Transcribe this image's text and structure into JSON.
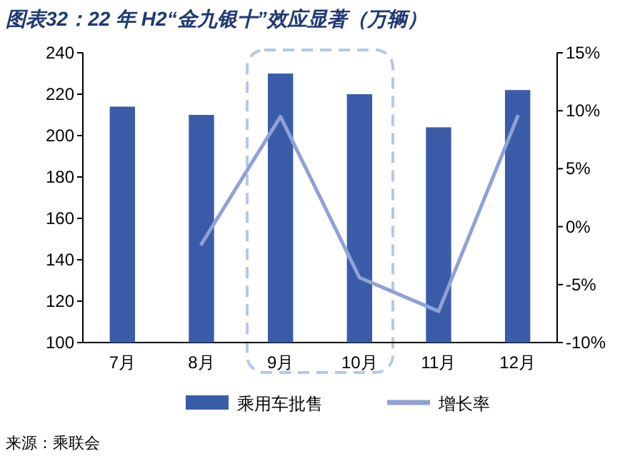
{
  "chart_data": {
    "type": "bar",
    "title": "图表32：22 年 H2“金九银十”效应显著（万辆）",
    "categories": [
      "7月",
      "8月",
      "9月",
      "10月",
      "11月",
      "12月"
    ],
    "series": [
      {
        "name": "乘用车批售",
        "color": "#3a5ca8",
        "values": [
          214,
          210,
          230,
          220,
          204,
          222
        ]
      },
      {
        "name": "增长率",
        "type": "line",
        "axis": "y2",
        "color": "#8fa2d6",
        "values": [
          null,
          -1.5,
          9.5,
          -4.4,
          -7.3,
          9.5
        ]
      }
    ],
    "ylim": [
      100,
      240
    ],
    "yticks": [
      100,
      120,
      140,
      160,
      180,
      200,
      220,
      240
    ],
    "y2lim": [
      -10,
      15
    ],
    "y2ticks": [
      {
        "value": -10,
        "label": "-10%"
      },
      {
        "value": -5,
        "label": "-5%"
      },
      {
        "value": 0,
        "label": "0%"
      },
      {
        "value": 5,
        "label": "5%"
      },
      {
        "value": 10,
        "label": "10%"
      },
      {
        "value": 15,
        "label": "15%"
      }
    ],
    "legend": "bottom",
    "grid": false,
    "annotations": [
      "来源：乘联会"
    ]
  }
}
